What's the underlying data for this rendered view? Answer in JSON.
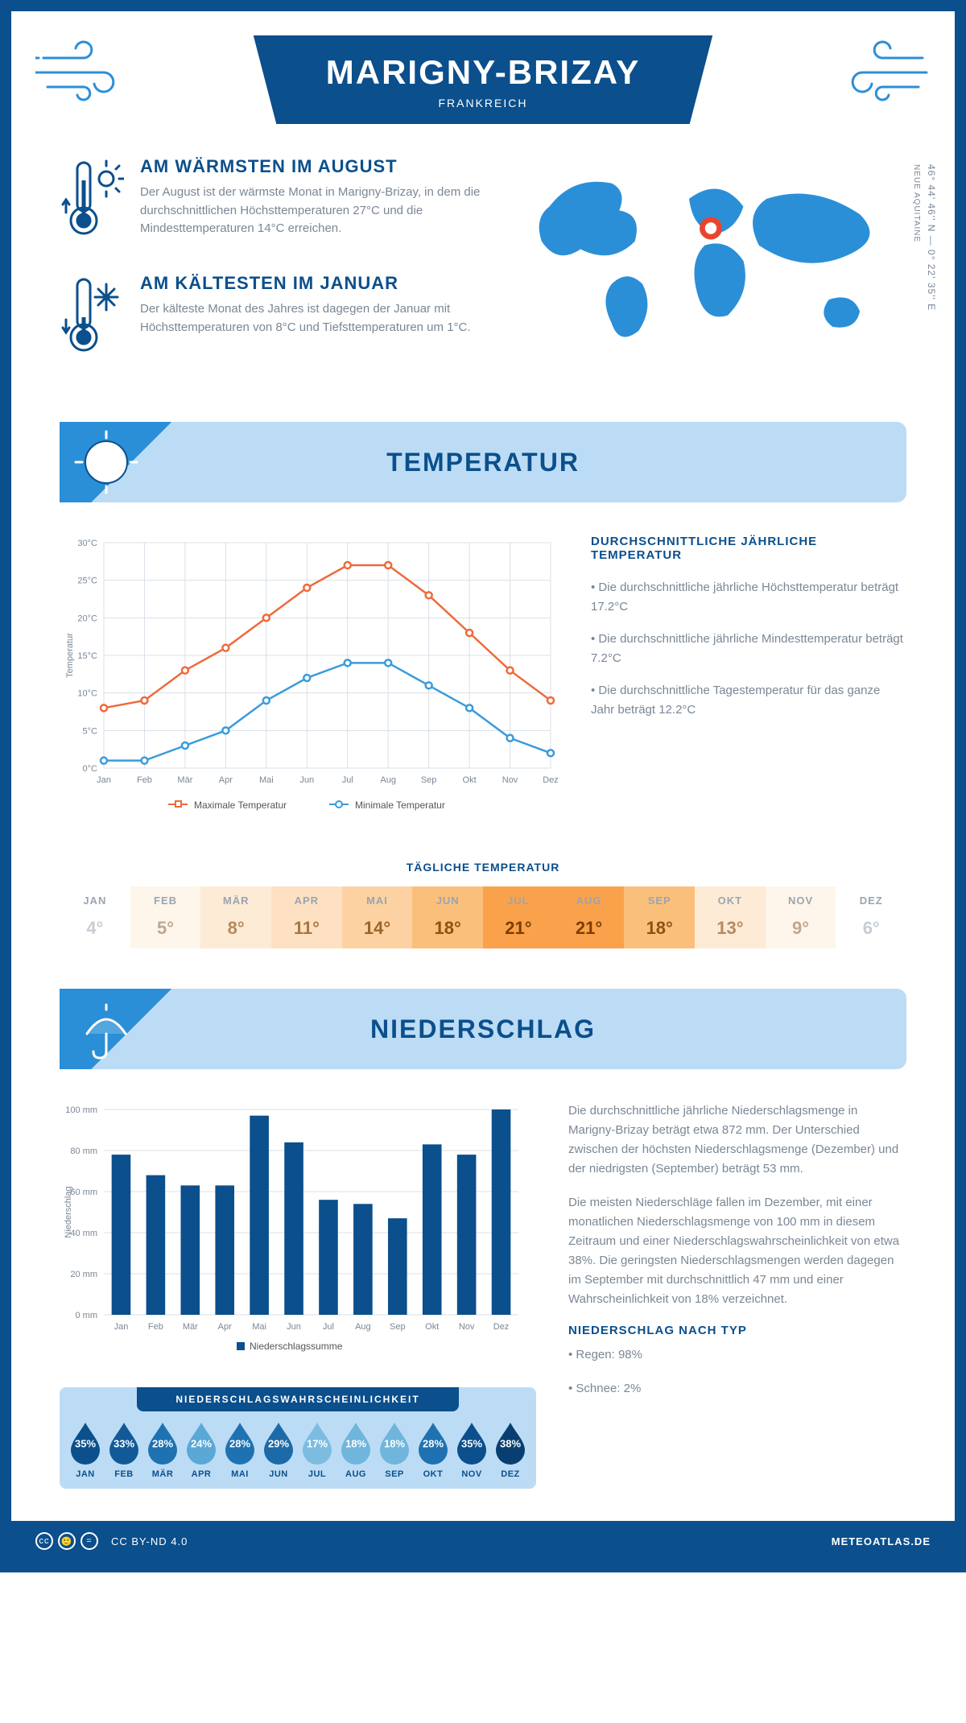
{
  "header": {
    "title": "MARIGNY-BRIZAY",
    "subtitle": "FRANKREICH",
    "coords_line1": "46° 44' 46'' N — 0° 22' 35'' E",
    "coords_line2": "NEUE AQUITAINE"
  },
  "facts": {
    "warm": {
      "title": "AM WÄRMSTEN IM AUGUST",
      "text": "Der August ist der wärmste Monat in Marigny-Brizay, in dem die durchschnittlichen Höchsttemperaturen 27°C und die Mindesttemperaturen 14°C erreichen."
    },
    "cold": {
      "title": "AM KÄLTESTEN IM JANUAR",
      "text": "Der kälteste Monat des Jahres ist dagegen der Januar mit Höchsttemperaturen von 8°C und Tiefsttemperaturen um 1°C."
    }
  },
  "sections": {
    "temperature": "TEMPERATUR",
    "precipitation": "NIEDERSCHLAG"
  },
  "months": [
    "Jan",
    "Feb",
    "Mär",
    "Apr",
    "Mai",
    "Jun",
    "Jul",
    "Aug",
    "Sep",
    "Okt",
    "Nov",
    "Dez"
  ],
  "months_upper": [
    "JAN",
    "FEB",
    "MÄR",
    "APR",
    "MAI",
    "JUN",
    "JUL",
    "AUG",
    "SEP",
    "OKT",
    "NOV",
    "DEZ"
  ],
  "temp_chart": {
    "y_label": "Temperatur",
    "y_min": 0,
    "y_max": 30,
    "y_step": 5,
    "max_series": [
      8,
      9,
      13,
      16,
      20,
      24,
      27,
      27,
      23,
      18,
      13,
      9
    ],
    "min_series": [
      1,
      1,
      3,
      5,
      9,
      12,
      14,
      14,
      11,
      8,
      4,
      2
    ],
    "max_color": "#ef6a3a",
    "min_color": "#3a9bdc",
    "grid_color": "#d8e0e8",
    "legend_max": "Maximale Temperatur",
    "legend_min": "Minimale Temperatur"
  },
  "temp_summary": {
    "title": "DURCHSCHNITTLICHE JÄHRLICHE TEMPERATUR",
    "b1": "• Die durchschnittliche jährliche Höchsttemperatur beträgt 17.2°C",
    "b2": "• Die durchschnittliche jährliche Mindesttemperatur beträgt 7.2°C",
    "b3": "• Die durchschnittliche Tagestemperatur für das ganze Jahr beträgt 12.2°C"
  },
  "daily_temp": {
    "title": "TÄGLICHE TEMPERATUR",
    "values": [
      4,
      5,
      8,
      11,
      14,
      18,
      21,
      21,
      18,
      13,
      9,
      6
    ],
    "bg_colors": [
      "#ffffff",
      "#fef5eb",
      "#fdebd6",
      "#fde1c2",
      "#fcd2a3",
      "#fbbf7c",
      "#f9a24b",
      "#f9a24b",
      "#fbbf7c",
      "#fdebd6",
      "#fef5eb",
      "#ffffff"
    ],
    "text_colors": [
      "#c7cdd4",
      "#bfa88f",
      "#b38b5f",
      "#a87741",
      "#9d6428",
      "#8f5113",
      "#7c3e00",
      "#7c3e00",
      "#8f5113",
      "#b38b5f",
      "#bfa88f",
      "#c7cdd4"
    ]
  },
  "precip_chart": {
    "y_label": "Niederschlag",
    "y_min": 0,
    "y_max": 100,
    "y_step": 20,
    "values": [
      78,
      68,
      63,
      63,
      97,
      84,
      56,
      54,
      47,
      83,
      78,
      100
    ],
    "bar_color": "#0b4f8c",
    "legend": "Niederschlagssumme"
  },
  "precip_text": {
    "p1": "Die durchschnittliche jährliche Niederschlagsmenge in Marigny-Brizay beträgt etwa 872 mm. Der Unterschied zwischen der höchsten Niederschlagsmenge (Dezember) und der niedrigsten (September) beträgt 53 mm.",
    "p2": "Die meisten Niederschläge fallen im Dezember, mit einer monatlichen Niederschlagsmenge von 100 mm in diesem Zeitraum und einer Niederschlagswahrscheinlichkeit von etwa 38%. Die geringsten Niederschlagsmengen werden dagegen im September mit durchschnittlich 47 mm und einer Wahrscheinlichkeit von 18% verzeichnet.",
    "type_title": "NIEDERSCHLAG NACH TYP",
    "type1": "• Regen: 98%",
    "type2": "• Schnee: 2%"
  },
  "precip_prob": {
    "title": "NIEDERSCHLAGSWAHRSCHEINLICHKEIT",
    "values": [
      35,
      33,
      28,
      24,
      28,
      29,
      17,
      18,
      18,
      28,
      35,
      38
    ],
    "colors": [
      "#0b4f8c",
      "#125a97",
      "#1f72b1",
      "#5ba7d6",
      "#1f72b1",
      "#1c6aa8",
      "#7cbce0",
      "#6fb5dc",
      "#6fb5dc",
      "#1f72b1",
      "#0b4f8c",
      "#083f70"
    ]
  },
  "footer": {
    "license": "CC BY-ND 4.0",
    "site": "METEOATLAS.DE"
  },
  "colors": {
    "brand": "#0b4f8c",
    "band": "#bcdcf5",
    "accent": "#2b8fd8",
    "grey_text": "#7a8795"
  }
}
